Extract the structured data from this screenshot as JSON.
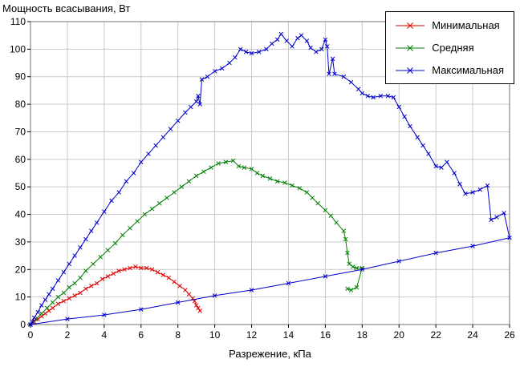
{
  "chart_data": {
    "type": "line",
    "title": "Мощность всасывания, Вт",
    "xlabel": "Разрежение, кПа",
    "ylabel": "",
    "xlim": [
      0,
      26
    ],
    "ylim": [
      0,
      110
    ],
    "xticks": [
      0,
      2,
      4,
      6,
      8,
      10,
      12,
      14,
      16,
      18,
      20,
      22,
      24,
      26
    ],
    "yticks": [
      0,
      10,
      20,
      30,
      40,
      50,
      60,
      70,
      80,
      90,
      100,
      110
    ],
    "grid": true,
    "grid_color": "#c9c9c9",
    "border_color": "#707070",
    "legend_position": "top-right",
    "series": [
      {
        "name": "Минимальная",
        "color": "#dd0000",
        "marker": "x",
        "points": [
          [
            0,
            0
          ],
          [
            0.2,
            1
          ],
          [
            0.4,
            2
          ],
          [
            0.6,
            3
          ],
          [
            0.8,
            4
          ],
          [
            1.0,
            5
          ],
          [
            1.2,
            6
          ],
          [
            1.5,
            7.5
          ],
          [
            1.8,
            8.5
          ],
          [
            2.1,
            9.5
          ],
          [
            2.4,
            10.5
          ],
          [
            2.7,
            11.5
          ],
          [
            3.0,
            13
          ],
          [
            3.3,
            14
          ],
          [
            3.6,
            15
          ],
          [
            3.9,
            16.5
          ],
          [
            4.2,
            17.5
          ],
          [
            4.5,
            18.5
          ],
          [
            4.8,
            19.5
          ],
          [
            5.1,
            20
          ],
          [
            5.4,
            20.5
          ],
          [
            5.7,
            21
          ],
          [
            6.0,
            20.5
          ],
          [
            6.3,
            20.5
          ],
          [
            6.6,
            20
          ],
          [
            6.9,
            19
          ],
          [
            7.2,
            18
          ],
          [
            7.5,
            17
          ],
          [
            7.8,
            15.5
          ],
          [
            8.1,
            14
          ],
          [
            8.4,
            12.5
          ],
          [
            8.6,
            11
          ],
          [
            8.8,
            9.5
          ],
          [
            8.9,
            8.5
          ],
          [
            9.0,
            7
          ],
          [
            9.1,
            6
          ],
          [
            9.2,
            5
          ]
        ]
      },
      {
        "name": "Средняя",
        "color": "#008000",
        "marker": "x",
        "points": [
          [
            0,
            0
          ],
          [
            0.3,
            2
          ],
          [
            0.6,
            4
          ],
          [
            0.9,
            6
          ],
          [
            1.2,
            8
          ],
          [
            1.5,
            10
          ],
          [
            1.8,
            11.5
          ],
          [
            2.1,
            13.5
          ],
          [
            2.4,
            15
          ],
          [
            2.7,
            17
          ],
          [
            3.0,
            19.5
          ],
          [
            3.4,
            22
          ],
          [
            3.8,
            24.5
          ],
          [
            4.2,
            27
          ],
          [
            4.6,
            29.5
          ],
          [
            5.0,
            32.5
          ],
          [
            5.4,
            35
          ],
          [
            5.8,
            37.5
          ],
          [
            6.2,
            40
          ],
          [
            6.6,
            42
          ],
          [
            7.0,
            44
          ],
          [
            7.4,
            46
          ],
          [
            7.8,
            48
          ],
          [
            8.2,
            50
          ],
          [
            8.6,
            52
          ],
          [
            9.0,
            54
          ],
          [
            9.4,
            55.5
          ],
          [
            9.8,
            57
          ],
          [
            10.2,
            58.5
          ],
          [
            10.6,
            59
          ],
          [
            11.0,
            59.5
          ],
          [
            11.3,
            57.5
          ],
          [
            11.6,
            57
          ],
          [
            12.0,
            56.5
          ],
          [
            12.3,
            55
          ],
          [
            12.6,
            54
          ],
          [
            13.0,
            53
          ],
          [
            13.4,
            52
          ],
          [
            13.8,
            51.5
          ],
          [
            14.2,
            50.5
          ],
          [
            14.6,
            49.5
          ],
          [
            15.0,
            48
          ],
          [
            15.3,
            46
          ],
          [
            15.6,
            44
          ],
          [
            16.0,
            41.5
          ],
          [
            16.3,
            39.5
          ],
          [
            16.6,
            37
          ],
          [
            17.0,
            34
          ],
          [
            17.1,
            31
          ],
          [
            17.2,
            26
          ],
          [
            17.3,
            22
          ],
          [
            17.5,
            21
          ],
          [
            17.7,
            20.5
          ],
          [
            18.0,
            20.5
          ],
          [
            17.7,
            13.5
          ],
          [
            17.4,
            12.5
          ],
          [
            17.2,
            13
          ]
        ]
      },
      {
        "name": "Максимальная",
        "color": "#0000cc",
        "marker": "x",
        "points": [
          [
            0,
            0
          ],
          [
            0.1,
            1
          ],
          [
            0.2,
            2.5
          ],
          [
            0.4,
            4.5
          ],
          [
            0.6,
            7
          ],
          [
            0.8,
            9
          ],
          [
            1.0,
            11
          ],
          [
            1.2,
            13
          ],
          [
            1.5,
            16
          ],
          [
            1.8,
            19
          ],
          [
            2.1,
            22
          ],
          [
            2.4,
            25
          ],
          [
            2.7,
            28
          ],
          [
            3.0,
            31
          ],
          [
            3.3,
            34
          ],
          [
            3.6,
            37
          ],
          [
            4.0,
            41
          ],
          [
            4.4,
            45
          ],
          [
            4.8,
            48
          ],
          [
            5.2,
            52
          ],
          [
            5.6,
            55
          ],
          [
            6.0,
            59
          ],
          [
            6.4,
            62
          ],
          [
            6.8,
            65
          ],
          [
            7.2,
            68
          ],
          [
            7.6,
            71
          ],
          [
            8.0,
            74
          ],
          [
            8.4,
            77
          ],
          [
            8.7,
            79
          ],
          [
            9.0,
            81
          ],
          [
            9.1,
            83
          ],
          [
            9.2,
            80
          ],
          [
            9.3,
            89
          ],
          [
            9.6,
            90
          ],
          [
            10.0,
            92
          ],
          [
            10.4,
            93
          ],
          [
            10.8,
            95
          ],
          [
            11.1,
            97
          ],
          [
            11.4,
            100
          ],
          [
            11.7,
            99
          ],
          [
            12.0,
            98.5
          ],
          [
            12.4,
            99
          ],
          [
            12.8,
            100
          ],
          [
            13.1,
            102
          ],
          [
            13.4,
            103.5
          ],
          [
            13.6,
            105.5
          ],
          [
            13.9,
            103
          ],
          [
            14.2,
            101
          ],
          [
            14.5,
            104
          ],
          [
            14.7,
            105
          ],
          [
            15.0,
            103
          ],
          [
            15.2,
            100.5
          ],
          [
            15.5,
            99
          ],
          [
            15.8,
            100
          ],
          [
            16.0,
            103.5
          ],
          [
            16.1,
            101
          ],
          [
            16.2,
            91
          ],
          [
            16.4,
            96.5
          ],
          [
            16.5,
            91
          ],
          [
            17.0,
            90
          ],
          [
            17.4,
            88
          ],
          [
            17.8,
            85.5
          ],
          [
            18.0,
            84
          ],
          [
            18.3,
            83
          ],
          [
            18.6,
            82.5
          ],
          [
            19.0,
            83
          ],
          [
            19.4,
            83
          ],
          [
            19.7,
            82.5
          ],
          [
            20.0,
            79
          ],
          [
            20.3,
            75.5
          ],
          [
            20.6,
            72
          ],
          [
            21.0,
            68
          ],
          [
            21.3,
            65
          ],
          [
            21.6,
            62
          ],
          [
            22.0,
            57.5
          ],
          [
            22.3,
            57
          ],
          [
            22.6,
            59
          ],
          [
            23.0,
            55
          ],
          [
            23.3,
            51
          ],
          [
            23.6,
            47.5
          ],
          [
            24.0,
            48
          ],
          [
            24.4,
            49
          ],
          [
            24.8,
            50.5
          ],
          [
            25.0,
            38
          ],
          [
            25.3,
            39
          ],
          [
            25.7,
            40.5
          ],
          [
            26.0,
            31.5
          ],
          [
            24.0,
            28.5
          ],
          [
            22.0,
            26
          ],
          [
            20.0,
            23
          ],
          [
            18.0,
            20
          ],
          [
            16.0,
            17.5
          ],
          [
            14.0,
            15
          ],
          [
            12.0,
            12.5
          ],
          [
            10.0,
            10.5
          ],
          [
            8.0,
            8
          ],
          [
            6.0,
            5.5
          ],
          [
            4.0,
            3.5
          ],
          [
            2.0,
            2
          ],
          [
            0,
            0
          ]
        ]
      }
    ]
  }
}
